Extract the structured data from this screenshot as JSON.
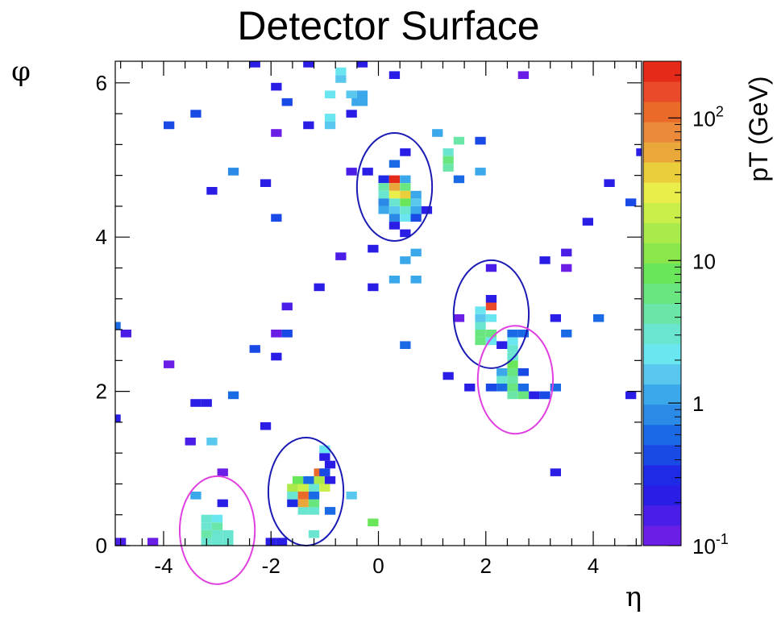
{
  "chart_data": {
    "type": "heatmap",
    "title": "Detector Surface",
    "xlabel": "η",
    "ylabel": "φ",
    "zlabel": "pT (GeV)",
    "xlim": [
      -4.9,
      4.9
    ],
    "ylim": [
      0,
      6.28
    ],
    "zlim": [
      0.1,
      250
    ],
    "zscale": "log",
    "cell_size": {
      "eta": 0.2,
      "phi": 0.1
    },
    "x_ticks": [
      -4,
      -2,
      0,
      2,
      4
    ],
    "x_tick_labels": [
      "-4",
      "-2",
      "0",
      "2",
      "4"
    ],
    "y_ticks": [
      0,
      2,
      4,
      6
    ],
    "y_tick_labels": [
      "0",
      "2",
      "4",
      "6"
    ],
    "z_ticks": [
      0.1,
      1,
      10,
      100
    ],
    "z_tick_labels": [
      {
        "base": "10",
        "exp": "-1"
      },
      {
        "base": "1",
        "exp": ""
      },
      {
        "base": "10",
        "exp": ""
      },
      {
        "base": "10",
        "exp": "2"
      }
    ],
    "palette": [
      "#6a1ee6",
      "#4a1ee6",
      "#2a1ee6",
      "#1e2ae6",
      "#1a4ae6",
      "#1a6ae6",
      "#2a8ae6",
      "#3aa8ea",
      "#5ac8ee",
      "#6ae6f0",
      "#6ae6d0",
      "#6ae6a8",
      "#6ae680",
      "#6ae65a",
      "#8ae64a",
      "#aaea4a",
      "#caee4a",
      "#eaee4a",
      "#eace3a",
      "#eaa83a",
      "#ea8a3a",
      "#ea6a2a",
      "#ea4a2a",
      "#e62a1a"
    ],
    "cells": [
      [
        -4.8,
        0.05,
        0.17
      ],
      [
        -4.2,
        0.05,
        0.12
      ],
      [
        -2.0,
        0.05,
        0.2
      ],
      [
        -1.8,
        0.05,
        0.2
      ],
      [
        -3.2,
        0.05,
        3.0
      ],
      [
        -3.0,
        0.05,
        3.5
      ],
      [
        -2.8,
        0.05,
        3.0
      ],
      [
        -3.2,
        0.15,
        4.0
      ],
      [
        -3.0,
        0.15,
        2.8
      ],
      [
        -2.8,
        0.15,
        3.5
      ],
      [
        -3.2,
        0.25,
        3.5
      ],
      [
        -3.0,
        0.25,
        4.0
      ],
      [
        -3.2,
        0.35,
        3.0
      ],
      [
        -3.0,
        0.35,
        2.5
      ],
      [
        -2.9,
        0.55,
        0.2
      ],
      [
        -3.4,
        0.65,
        1.3
      ],
      [
        -2.9,
        0.95,
        0.12
      ],
      [
        -3.5,
        1.35,
        0.15
      ],
      [
        -3.1,
        1.35,
        1.5
      ],
      [
        -4.9,
        1.65,
        0.2
      ],
      [
        -2.1,
        1.55,
        0.2
      ],
      [
        -3.4,
        1.85,
        0.2
      ],
      [
        -3.2,
        1.85,
        0.2
      ],
      [
        -2.7,
        1.95,
        0.6
      ],
      [
        -3.9,
        2.35,
        0.12
      ],
      [
        -1.2,
        0.15,
        3.2
      ],
      [
        -1.4,
        0.45,
        3.5
      ],
      [
        -1.2,
        0.45,
        3.0
      ],
      [
        -0.9,
        0.45,
        0.6
      ],
      [
        -1.6,
        0.55,
        0.3
      ],
      [
        -1.4,
        0.55,
        60
      ],
      [
        -1.2,
        0.55,
        5.0
      ],
      [
        -1.6,
        0.65,
        3.0
      ],
      [
        -1.4,
        0.65,
        100
      ],
      [
        -1.2,
        0.65,
        0.6
      ],
      [
        -1.6,
        0.75,
        15
      ],
      [
        -1.4,
        0.75,
        20
      ],
      [
        -1.2,
        0.75,
        3.0
      ],
      [
        -1.0,
        0.75,
        25
      ],
      [
        -1.5,
        0.85,
        8
      ],
      [
        -1.3,
        0.85,
        0.6
      ],
      [
        -1.1,
        0.85,
        15
      ],
      [
        -0.9,
        0.85,
        0.2
      ],
      [
        -1.1,
        0.95,
        110
      ],
      [
        -1.0,
        0.95,
        0.4
      ],
      [
        -0.9,
        1.05,
        0.2
      ],
      [
        -1.0,
        1.15,
        0.2
      ],
      [
        -1.0,
        1.25,
        2.0
      ],
      [
        -0.5,
        0.65,
        1.5
      ],
      [
        -0.1,
        0.3,
        8
      ],
      [
        -4.9,
        2.85,
        0.7
      ],
      [
        -4.7,
        2.75,
        0.15
      ],
      [
        -2.3,
        2.55,
        0.5
      ],
      [
        -1.9,
        2.75,
        0.12
      ],
      [
        -1.7,
        2.75,
        0.5
      ],
      [
        -1.9,
        2.45,
        0.2
      ],
      [
        -1.7,
        3.1,
        0.15
      ],
      [
        -1.1,
        3.35,
        0.2
      ],
      [
        -0.7,
        3.75,
        0.15
      ],
      [
        -0.1,
        3.35,
        0.2
      ],
      [
        -0.1,
        3.85,
        0.2
      ],
      [
        -3.1,
        4.6,
        0.2
      ],
      [
        -2.7,
        4.85,
        0.8
      ],
      [
        -2.1,
        4.7,
        0.2
      ],
      [
        -1.9,
        4.25,
        0.5
      ],
      [
        -0.5,
        4.85,
        0.15
      ],
      [
        -0.2,
        4.85,
        0.2
      ],
      [
        -3.9,
        5.45,
        0.5
      ],
      [
        -3.4,
        5.6,
        0.5
      ],
      [
        -1.9,
        5.35,
        0.12
      ],
      [
        -1.7,
        5.75,
        0.5
      ],
      [
        -1.9,
        5.95,
        0.2
      ],
      [
        -1.3,
        5.45,
        0.2
      ],
      [
        -0.9,
        5.45,
        1.5
      ],
      [
        -0.9,
        5.55,
        2.5
      ],
      [
        -0.9,
        5.85,
        2.0
      ],
      [
        -0.5,
        5.85,
        1.5
      ],
      [
        -0.5,
        5.6,
        0.2
      ],
      [
        -0.4,
        5.75,
        1.2
      ],
      [
        -0.3,
        5.75,
        1.2
      ],
      [
        -0.3,
        5.85,
        1.3
      ],
      [
        -0.7,
        6.05,
        1.5
      ],
      [
        -0.7,
        6.15,
        2.5
      ],
      [
        -2.3,
        6.25,
        0.2
      ],
      [
        -1.3,
        6.25,
        0.2
      ],
      [
        -0.3,
        6.25,
        0.2
      ],
      [
        0.3,
        6.1,
        0.2
      ],
      [
        0.1,
        4.75,
        0.3
      ],
      [
        0.3,
        4.75,
        200
      ],
      [
        0.5,
        4.75,
        1.2
      ],
      [
        0.1,
        4.65,
        4.0
      ],
      [
        0.3,
        4.65,
        60
      ],
      [
        0.5,
        4.65,
        5.0
      ],
      [
        0.1,
        4.55,
        3.5
      ],
      [
        0.3,
        4.55,
        30
      ],
      [
        0.5,
        4.55,
        40
      ],
      [
        0.7,
        4.55,
        1.2
      ],
      [
        0.1,
        4.45,
        0.8
      ],
      [
        0.3,
        4.45,
        3.0
      ],
      [
        0.5,
        4.45,
        8
      ],
      [
        0.7,
        4.45,
        1.5
      ],
      [
        0.1,
        4.35,
        1.2
      ],
      [
        0.3,
        4.35,
        1.5
      ],
      [
        0.5,
        4.35,
        3.0
      ],
      [
        0.7,
        4.35,
        1.3
      ],
      [
        0.9,
        4.35,
        0.2
      ],
      [
        0.3,
        4.25,
        0.8
      ],
      [
        0.5,
        4.25,
        2.0
      ],
      [
        0.7,
        4.25,
        0.5
      ],
      [
        0.3,
        4.15,
        0.2
      ],
      [
        0.5,
        4.05,
        0.2
      ],
      [
        0.5,
        5.1,
        0.2
      ],
      [
        0.3,
        4.95,
        0.7
      ],
      [
        0.5,
        3.7,
        1.3
      ],
      [
        0.7,
        3.8,
        1.0
      ],
      [
        0.3,
        3.45,
        1.2
      ],
      [
        0.7,
        3.45,
        1.3
      ],
      [
        0.5,
        2.6,
        0.6
      ],
      [
        1.1,
        5.35,
        1.3
      ],
      [
        1.3,
        5.1,
        3.5
      ],
      [
        1.3,
        5.0,
        5.0
      ],
      [
        1.3,
        4.9,
        4.0
      ],
      [
        1.5,
        5.25,
        4.0
      ],
      [
        1.9,
        5.25,
        0.5
      ],
      [
        1.5,
        4.75,
        0.6
      ],
      [
        1.9,
        4.85,
        1.3
      ],
      [
        1.3,
        2.2,
        0.2
      ],
      [
        1.7,
        2.05,
        0.2
      ],
      [
        1.5,
        2.95,
        0.12
      ],
      [
        2.1,
        3.6,
        0.15
      ],
      [
        2.1,
        3.2,
        0.2
      ],
      [
        2.1,
        3.1,
        150
      ],
      [
        2.1,
        2.95,
        2.0
      ],
      [
        1.9,
        3.05,
        2.5
      ],
      [
        1.9,
        2.95,
        1.8
      ],
      [
        1.9,
        2.85,
        3.5
      ],
      [
        1.9,
        2.75,
        6
      ],
      [
        1.9,
        2.65,
        5.0
      ],
      [
        2.1,
        2.75,
        5.0
      ],
      [
        2.1,
        2.65,
        2.5
      ],
      [
        2.3,
        2.6,
        0.2
      ],
      [
        2.5,
        2.75,
        0.6
      ],
      [
        2.5,
        2.65,
        2.0
      ],
      [
        2.7,
        2.75,
        0.6
      ],
      [
        2.5,
        2.55,
        3.0
      ],
      [
        2.5,
        2.45,
        3.0
      ],
      [
        2.5,
        2.35,
        8
      ],
      [
        2.3,
        2.25,
        1.2
      ],
      [
        2.5,
        2.25,
        5.0
      ],
      [
        2.3,
        2.15,
        3.0
      ],
      [
        2.5,
        2.15,
        4.0
      ],
      [
        2.1,
        2.05,
        0.5
      ],
      [
        2.3,
        2.05,
        0.7
      ],
      [
        2.5,
        2.05,
        6
      ],
      [
        2.5,
        1.95,
        4.0
      ],
      [
        2.7,
        1.95,
        5.0
      ],
      [
        2.7,
        2.05,
        0.6
      ],
      [
        2.7,
        2.25,
        0.5
      ],
      [
        2.9,
        1.95,
        0.2
      ],
      [
        3.1,
        1.95,
        0.5
      ],
      [
        3.3,
        2.05,
        0.7
      ],
      [
        3.3,
        2.95,
        0.2
      ],
      [
        3.5,
        2.75,
        0.7
      ],
      [
        4.1,
        2.95,
        0.6
      ],
      [
        3.1,
        3.7,
        0.2
      ],
      [
        3.5,
        3.8,
        0.15
      ],
      [
        3.5,
        3.6,
        0.12
      ],
      [
        3.9,
        4.2,
        0.2
      ],
      [
        4.3,
        4.7,
        0.2
      ],
      [
        4.7,
        4.45,
        0.5
      ],
      [
        4.9,
        5.1,
        0.2
      ],
      [
        2.7,
        6.1,
        0.12
      ],
      [
        4.7,
        1.95,
        0.2
      ],
      [
        3.3,
        0.95,
        0.2
      ]
    ],
    "ellipses": [
      {
        "cx": 0.3,
        "cy": 4.65,
        "rx": 0.7,
        "ry": 0.7,
        "color": "#1a1ab4"
      },
      {
        "cx": 2.1,
        "cy": 3.0,
        "rx": 0.7,
        "ry": 0.7,
        "color": "#1a1ab4"
      },
      {
        "cx": 2.55,
        "cy": 2.15,
        "rx": 0.7,
        "ry": 0.7,
        "color": "#e040e0"
      },
      {
        "cx": -1.35,
        "cy": 0.7,
        "rx": 0.7,
        "ry": 0.7,
        "color": "#1a1ab4"
      },
      {
        "cx": -3.0,
        "cy": 0.2,
        "rx": 0.7,
        "ry": 0.7,
        "color": "#e040e0"
      }
    ]
  }
}
